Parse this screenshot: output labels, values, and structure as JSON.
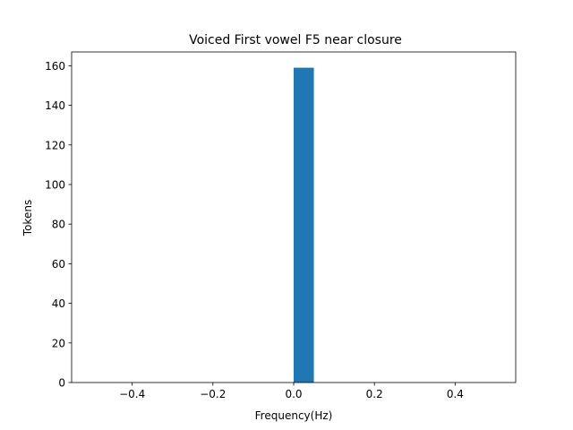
{
  "chart_data": {
    "type": "bar",
    "title": "Voiced First vowel F5 near closure",
    "xlabel": "Frequency(Hz)",
    "ylabel": "Tokens",
    "xlim": [
      -0.55,
      0.55
    ],
    "ylim": [
      0,
      166.95
    ],
    "xticks": [
      -0.4,
      -0.2,
      0.0,
      0.2,
      0.4
    ],
    "xtick_labels": [
      "−0.4",
      "−0.2",
      "0.0",
      "0.2",
      "0.4"
    ],
    "yticks": [
      0,
      20,
      40,
      60,
      80,
      100,
      120,
      140,
      160
    ],
    "ytick_labels": [
      "0",
      "20",
      "40",
      "60",
      "80",
      "100",
      "120",
      "140",
      "160"
    ],
    "bins": [
      {
        "x0": 0.0,
        "x1": 0.05,
        "value": 159
      }
    ],
    "bar_color": "#1f77b4",
    "grid": false
  }
}
